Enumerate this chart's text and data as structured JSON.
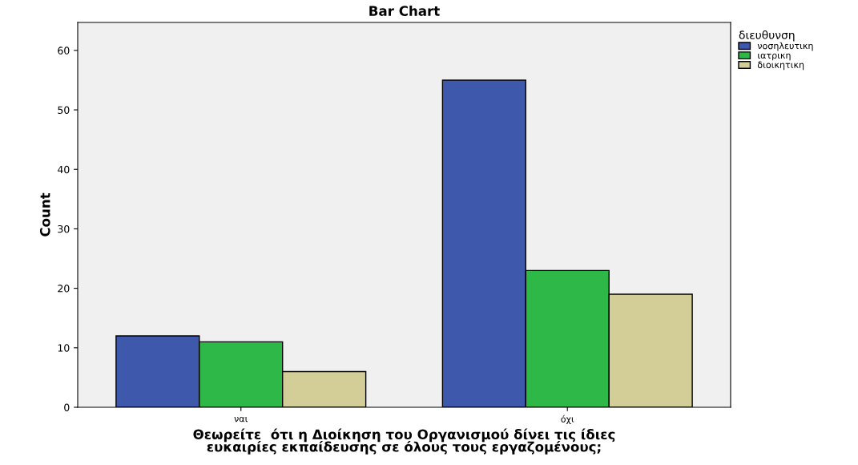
{
  "chart_data": {
    "type": "bar",
    "title": "Bar Chart",
    "xlabel": "Θεωρείτε  ότι η Διοίκηση του Οργανισμού δίνει τις ίδιες\nευκαιρίες εκπαίδευσης σε όλους τους εργαζομένους;",
    "ylabel": "Count",
    "legend_title": "διευθυνση",
    "categories": [
      "ναι",
      "όχι"
    ],
    "series": [
      {
        "name": "νοσηλευτικη",
        "color": "#3e58ac",
        "values": [
          12,
          55
        ]
      },
      {
        "name": "ιατρικη",
        "color": "#2eb848",
        "values": [
          11,
          23
        ]
      },
      {
        "name": "διοικητικη",
        "color": "#d3ce97",
        "values": [
          6,
          19
        ]
      }
    ],
    "ylim": [
      0,
      64.7
    ],
    "yticks": [
      0,
      10,
      20,
      30,
      40,
      50,
      60
    ],
    "grid": false,
    "legend": "top right"
  }
}
